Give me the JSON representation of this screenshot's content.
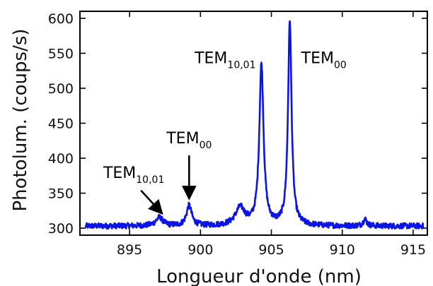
{
  "chart_data": {
    "type": "line",
    "xlabel": "Longueur d'onde (nm)",
    "ylabel": "Photolum. (coups/s)",
    "xlim": [
      891.5,
      916
    ],
    "ylim": [
      290,
      610
    ],
    "x_ticks": [
      895,
      900,
      905,
      910,
      915
    ],
    "y_ticks": [
      300,
      350,
      400,
      450,
      500,
      550,
      600
    ],
    "grid": false,
    "series": [
      {
        "color": "#0a14e6",
        "baseline": 303,
        "noise": 4,
        "peaks": [
          {
            "x": 897.1,
            "height": 12,
            "width": 0.3
          },
          {
            "x": 899.2,
            "height": 29,
            "width": 0.22
          },
          {
            "x": 902.8,
            "height": 25,
            "width": 0.4
          },
          {
            "x": 904.3,
            "height": 230,
            "width": 0.18
          },
          {
            "x": 906.3,
            "height": 292,
            "width": 0.15
          },
          {
            "x": 911.6,
            "height": 10,
            "width": 0.15
          }
        ],
        "x_range": [
          891.9,
          915.7
        ]
      }
    ],
    "annotations": [
      {
        "main": "TEM",
        "sub": "10,01",
        "x": 903.9,
        "y": 536,
        "anchor": "end"
      },
      {
        "main": "TEM",
        "sub": "00",
        "x": 907.1,
        "y": 536,
        "anchor": "start"
      },
      {
        "main": "TEM",
        "sub": "00",
        "x": 899.2,
        "y": 421,
        "anchor": "middle",
        "arrow": {
          "from": [
            899.2,
            404
          ],
          "to": [
            899.2,
            345
          ]
        }
      },
      {
        "main": "TEM",
        "sub": "10,01",
        "x": 895.3,
        "y": 372,
        "anchor": "middle",
        "arrow": {
          "from": [
            895.8,
            354
          ],
          "to": [
            897.2,
            323
          ]
        }
      }
    ]
  }
}
